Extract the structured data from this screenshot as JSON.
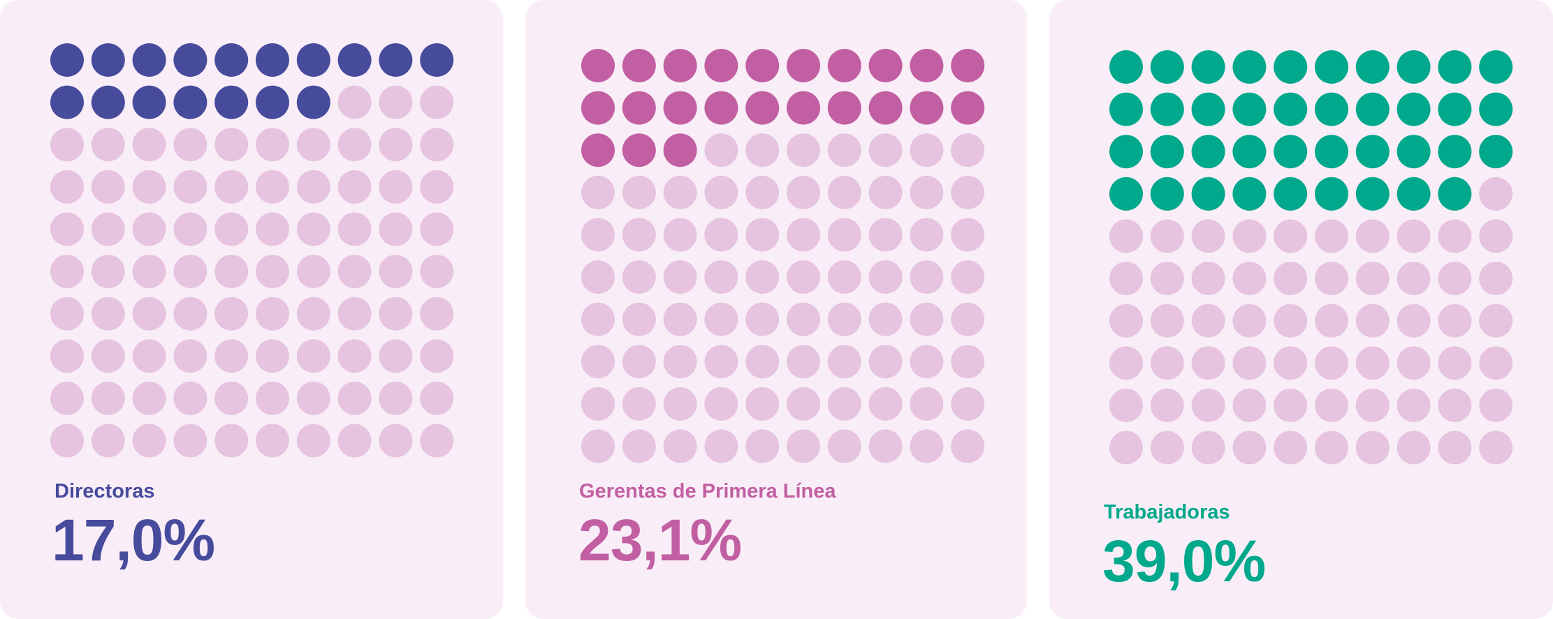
{
  "colors": {
    "inactive": "#e6c3df",
    "card_background": "#f9eef8"
  },
  "chart_data": [
    {
      "type": "waffle",
      "grid": {
        "rows": 10,
        "cols": 10
      },
      "label": "Directoras",
      "value_text": "17,0%",
      "value": 17.0,
      "filled_dots": 17,
      "color": "#474b9c"
    },
    {
      "type": "waffle",
      "grid": {
        "rows": 10,
        "cols": 10
      },
      "label": "Gerentas de Primera Línea",
      "value_text": "23,1%",
      "value": 23.1,
      "filled_dots": 23,
      "color": "#c25fa2"
    },
    {
      "type": "waffle",
      "grid": {
        "rows": 10,
        "cols": 10
      },
      "label": "Trabajadoras",
      "value_text": "39,0%",
      "value": 39.0,
      "filled_dots": 39,
      "color": "#00a88c"
    }
  ]
}
